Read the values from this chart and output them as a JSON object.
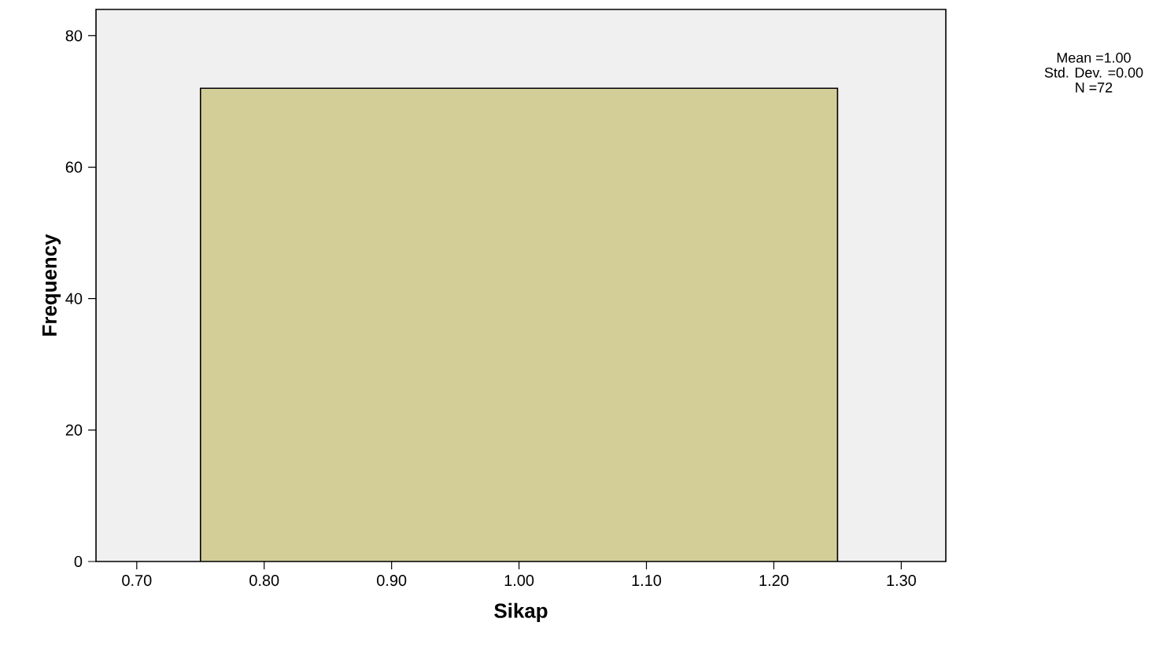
{
  "chart_data": {
    "type": "histogram",
    "xlabel": "Sikap",
    "ylabel": "Frequency",
    "bins": [
      0.75,
      1.25
    ],
    "values": [
      72
    ],
    "color": "#d3cd98",
    "xlim": [
      0.668,
      1.335
    ],
    "ylim": [
      0,
      84
    ],
    "xticks": [
      {
        "value": 0.7,
        "label": "0.70"
      },
      {
        "value": 0.8,
        "label": "0.80"
      },
      {
        "value": 0.9,
        "label": "0.90"
      },
      {
        "value": 1.0,
        "label": "1.00"
      },
      {
        "value": 1.1,
        "label": "1.10"
      },
      {
        "value": 1.2,
        "label": "1.20"
      },
      {
        "value": 1.3,
        "label": "1.30"
      }
    ],
    "yticks": [
      0,
      20,
      40,
      60,
      80
    ],
    "annotations": [
      "Mean =1.00",
      "Std. Dev. =0.00",
      "N =72"
    ]
  }
}
